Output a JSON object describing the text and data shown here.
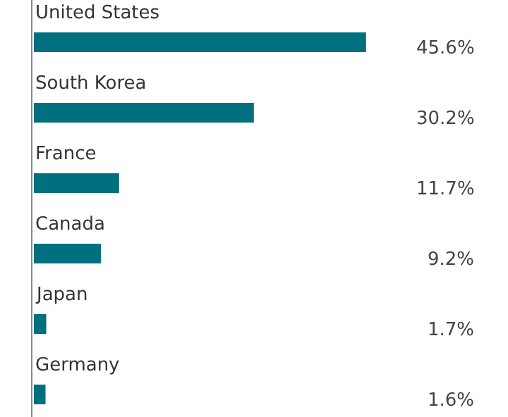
{
  "chart_data": {
    "type": "bar",
    "orientation": "horizontal",
    "categories": [
      "United States",
      "South Korea",
      "France",
      "Canada",
      "Japan",
      "Germany"
    ],
    "values": [
      45.6,
      30.2,
      11.7,
      9.2,
      1.7,
      1.6
    ],
    "value_labels": [
      "45.6%",
      "30.2%",
      "11.7%",
      "9.2%",
      "1.7%",
      "1.6%"
    ],
    "color": "#00707f"
  }
}
